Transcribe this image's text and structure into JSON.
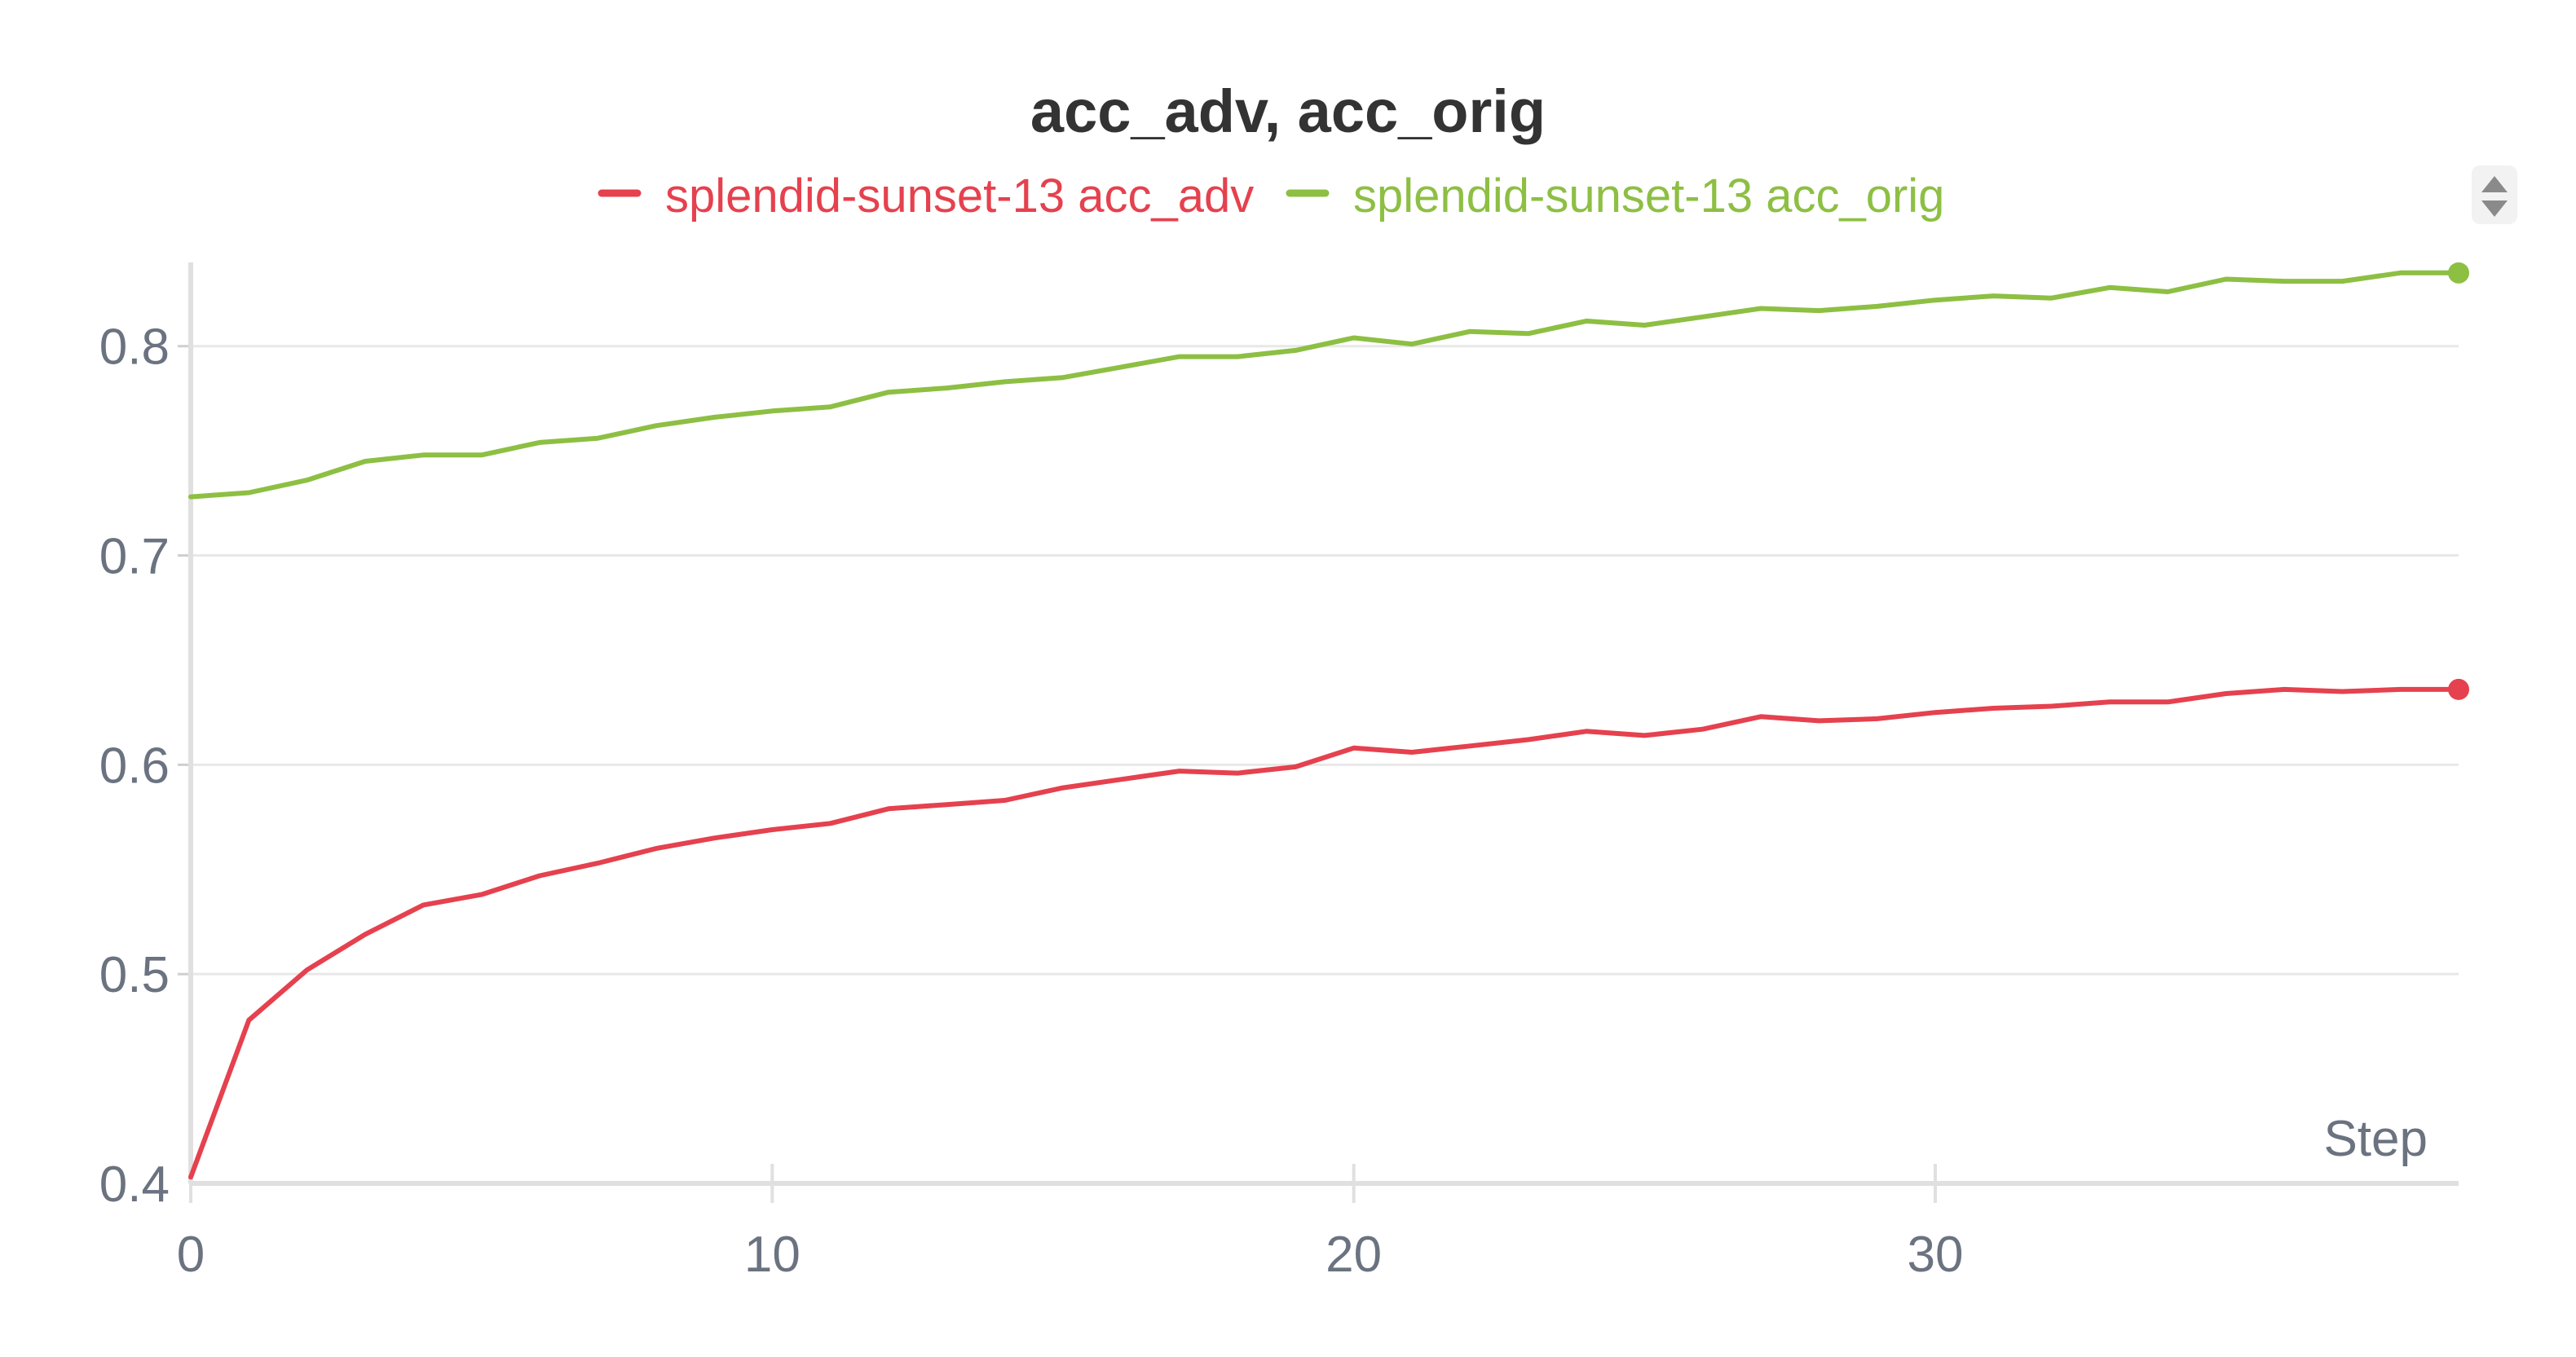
{
  "chart_data": {
    "type": "line",
    "title": "acc_adv, acc_orig",
    "xlabel": "Step",
    "ylabel": "",
    "xlim": [
      0,
      39
    ],
    "ylim": [
      0.4,
      0.84
    ],
    "xticks": [
      0,
      10,
      20,
      30
    ],
    "yticks": [
      0.4,
      0.5,
      0.6,
      0.7,
      0.8
    ],
    "x_tick_labels": [
      "0",
      "10",
      "20",
      "30"
    ],
    "y_tick_labels": [
      "0.4",
      "0.5",
      "0.6",
      "0.7",
      "0.8"
    ],
    "grid": true,
    "legend_position": "top-center",
    "x": [
      0,
      1,
      2,
      3,
      4,
      5,
      6,
      7,
      8,
      9,
      10,
      11,
      12,
      13,
      14,
      15,
      16,
      17,
      18,
      19,
      20,
      21,
      22,
      23,
      24,
      25,
      26,
      27,
      28,
      29,
      30,
      31,
      32,
      33,
      34,
      35,
      36,
      37,
      38,
      39
    ],
    "series": [
      {
        "name": "splendid-sunset-13 acc_adv",
        "color": "#e5414e",
        "values": [
          0.403,
          0.478,
          0.502,
          0.519,
          0.533,
          0.538,
          0.547,
          0.553,
          0.56,
          0.565,
          0.569,
          0.572,
          0.579,
          0.581,
          0.583,
          0.589,
          0.593,
          0.597,
          0.596,
          0.599,
          0.608,
          0.606,
          0.609,
          0.612,
          0.616,
          0.614,
          0.617,
          0.623,
          0.621,
          0.622,
          0.625,
          0.627,
          0.628,
          0.63,
          0.63,
          0.634,
          0.636,
          0.635,
          0.636,
          0.636
        ]
      },
      {
        "name": "splendid-sunset-13 acc_orig",
        "color": "#8dbf43",
        "values": [
          0.728,
          0.73,
          0.736,
          0.745,
          0.748,
          0.748,
          0.754,
          0.756,
          0.762,
          0.766,
          0.769,
          0.771,
          0.778,
          0.78,
          0.783,
          0.785,
          0.79,
          0.795,
          0.795,
          0.798,
          0.804,
          0.801,
          0.807,
          0.806,
          0.812,
          0.81,
          0.814,
          0.818,
          0.817,
          0.819,
          0.822,
          0.824,
          0.823,
          0.828,
          0.826,
          0.832,
          0.831,
          0.831,
          0.835,
          0.835
        ]
      }
    ]
  },
  "ui": {
    "sort_control_icon": "up-down-arrows-icon",
    "axis_color": "#e0e0e0",
    "grid_color": "#e8e8e8",
    "text_color": "#6b7280",
    "title_color": "#333333"
  }
}
